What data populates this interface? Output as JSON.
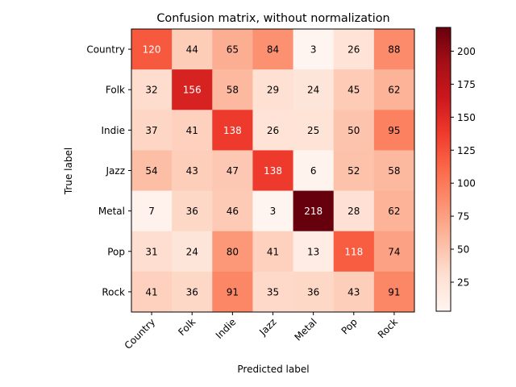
{
  "chart_data": {
    "type": "heatmap",
    "title": "Confusion matrix, without normalization",
    "xlabel": "Predicted label",
    "ylabel": "True label",
    "x_categories": [
      "Country",
      "Folk",
      "Indie",
      "Jazz",
      "Metal",
      "Pop",
      "Rock"
    ],
    "y_categories": [
      "Country",
      "Folk",
      "Indie",
      "Jazz",
      "Metal",
      "Pop",
      "Rock"
    ],
    "values": [
      [
        120,
        44,
        65,
        84,
        3,
        26,
        88
      ],
      [
        32,
        156,
        58,
        29,
        24,
        45,
        62
      ],
      [
        37,
        41,
        138,
        26,
        25,
        50,
        95
      ],
      [
        54,
        43,
        47,
        138,
        6,
        52,
        58
      ],
      [
        7,
        36,
        46,
        3,
        218,
        28,
        62
      ],
      [
        31,
        24,
        80,
        41,
        13,
        118,
        74
      ],
      [
        41,
        36,
        91,
        35,
        36,
        43,
        91
      ]
    ],
    "colormap": "Reds",
    "value_range": [
      3,
      218
    ],
    "colorbar_ticks": [
      25,
      50,
      75,
      100,
      125,
      150,
      175,
      200
    ],
    "text_color_dark": "#000000",
    "text_color_light": "#ffffff"
  }
}
